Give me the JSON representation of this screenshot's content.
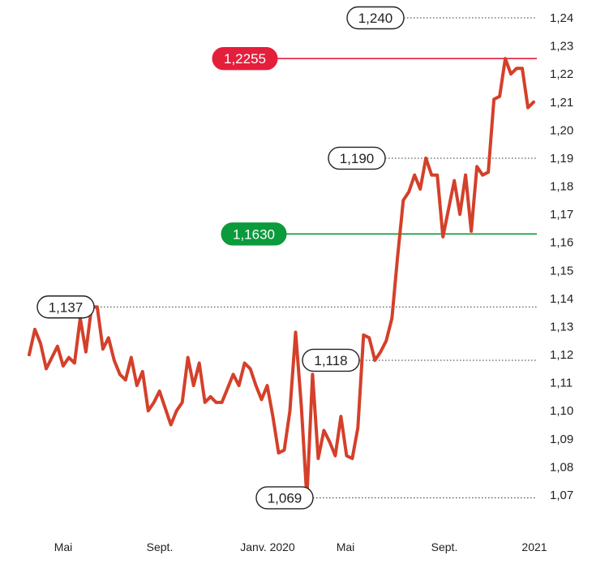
{
  "chart_data": {
    "type": "line",
    "ylim": [
      1.07,
      1.24
    ],
    "yticks": [
      "1,24",
      "1,23",
      "1,22",
      "1,21",
      "1,20",
      "1,19",
      "1,18",
      "1,17",
      "1,16",
      "1,15",
      "1,14",
      "1,13",
      "1,12",
      "1,11",
      "1,10",
      "1,09",
      "1,08",
      "1,07"
    ],
    "xticks": [
      "Mai",
      "Sept.",
      "Janv. 2020",
      "Mai",
      "Sept.",
      "2021"
    ],
    "series": [
      {
        "color": "#d4402a",
        "values": [
          1.12,
          1.129,
          1.124,
          1.115,
          1.119,
          1.123,
          1.116,
          1.119,
          1.117,
          1.133,
          1.121,
          1.137,
          1.137,
          1.122,
          1.126,
          1.118,
          1.113,
          1.111,
          1.119,
          1.109,
          1.114,
          1.1,
          1.103,
          1.107,
          1.101,
          1.095,
          1.1,
          1.103,
          1.119,
          1.109,
          1.117,
          1.103,
          1.105,
          1.103,
          1.103,
          1.108,
          1.113,
          1.109,
          1.117,
          1.115,
          1.109,
          1.104,
          1.109,
          1.098,
          1.085,
          1.086,
          1.1,
          1.128,
          1.102,
          1.069,
          1.113,
          1.083,
          1.093,
          1.089,
          1.084,
          1.098,
          1.084,
          1.083,
          1.094,
          1.127,
          1.126,
          1.118,
          1.121,
          1.125,
          1.133,
          1.155,
          1.175,
          1.178,
          1.184,
          1.179,
          1.19,
          1.184,
          1.184,
          1.162,
          1.172,
          1.182,
          1.17,
          1.184,
          1.164,
          1.187,
          1.184,
          1.185,
          1.211,
          1.212,
          1.2255,
          1.22,
          1.222,
          1.222,
          1.208,
          1.21
        ]
      }
    ],
    "reference_lines": [
      {
        "value": 1.2255,
        "label": "1,2255",
        "color": "#e41f3c"
      },
      {
        "value": 1.163,
        "label": "1,1630",
        "color": "#0b9a3c"
      }
    ],
    "annotations": [
      {
        "value": 1.24,
        "label": "1,240"
      },
      {
        "value": 1.19,
        "label": "1,190"
      },
      {
        "value": 1.137,
        "label": "1,137"
      },
      {
        "value": 1.118,
        "label": "1,118"
      },
      {
        "value": 1.069,
        "label": "1,069"
      }
    ],
    "grid": false,
    "legend": "none"
  }
}
